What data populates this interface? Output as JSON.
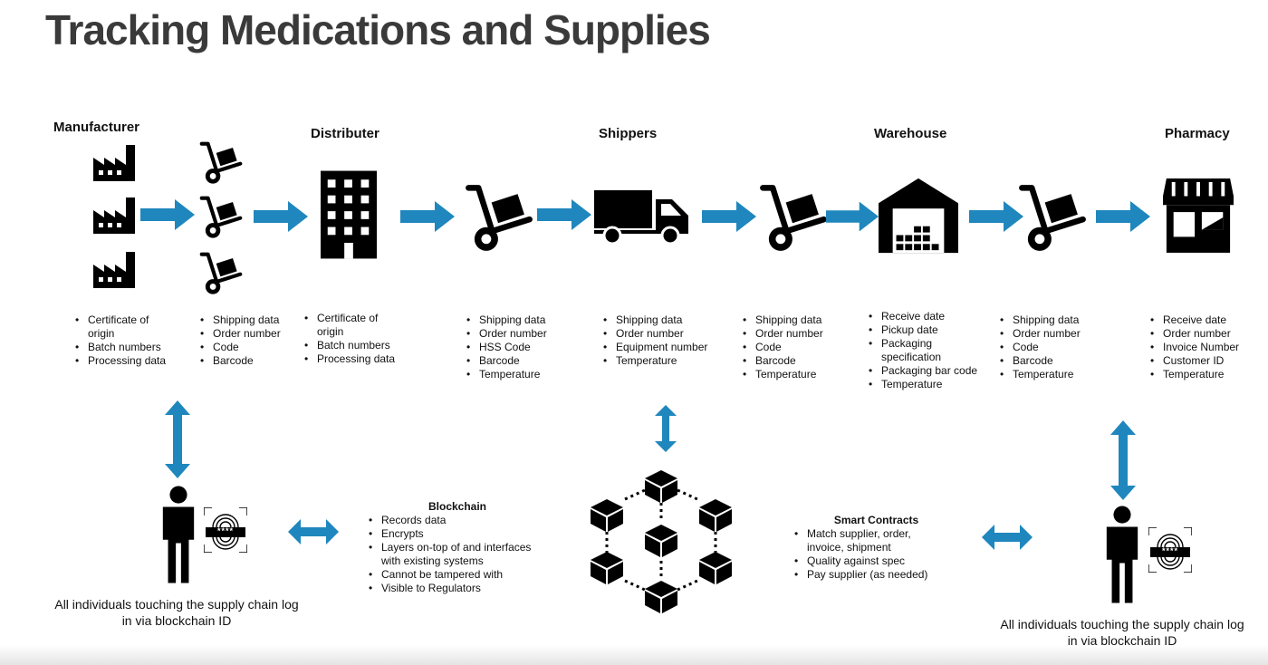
{
  "title": "Tracking Medications and Supplies",
  "stages": [
    {
      "name": "Manufacturer",
      "items": [
        "Certificate of origin",
        "Batch numbers",
        "Processing data"
      ]
    },
    {
      "name": "",
      "items": [
        "Shipping data",
        "Order number",
        "Code",
        "Barcode"
      ]
    },
    {
      "name": "Distributer",
      "items": [
        "Certificate of origin",
        "Batch numbers",
        "Processing data"
      ]
    },
    {
      "name": "",
      "items": [
        "Shipping data",
        "Order number",
        "HSS Code",
        "Barcode",
        "Temperature"
      ]
    },
    {
      "name": "Shippers",
      "items": [
        "Shipping data",
        "Order number",
        "Equipment number",
        "Temperature"
      ]
    },
    {
      "name": "",
      "items": [
        "Shipping data",
        "Order number",
        "Code",
        "Barcode",
        "Temperature"
      ]
    },
    {
      "name": "Warehouse",
      "items": [
        "Receive date",
        "Pickup date",
        "Packaging specification",
        "Packaging bar code",
        "Temperature"
      ]
    },
    {
      "name": "",
      "items": [
        "Shipping data",
        "Order number",
        "Code",
        "Barcode",
        "Temperature"
      ]
    },
    {
      "name": "Pharmacy",
      "items": [
        "Receive date",
        "Order number",
        "Invoice Number",
        "Customer ID",
        "Temperature"
      ]
    }
  ],
  "blockchain": {
    "heading": "Blockchain",
    "items": [
      "Records data",
      "Encrypts",
      "Layers on-top of and interfaces with existing systems",
      "Cannot be tampered with",
      "Visible to Regulators"
    ]
  },
  "smart_contracts": {
    "heading": "Smart Contracts",
    "items": [
      "Match supplier, order, invoice, shipment",
      "Quality against spec",
      "Pay supplier (as needed)"
    ]
  },
  "captions": {
    "left": "All individuals touching the supply chain log in via blockchain ID",
    "right": "All individuals touching the supply chain log in via blockchain ID"
  },
  "id_card_text": "****",
  "colors": {
    "arrow": "#1f87bd",
    "icon": "#000000",
    "title": "#3a3a3a"
  },
  "icons": [
    "factory-icon",
    "hand-truck-icon",
    "office-building-icon",
    "delivery-truck-icon",
    "warehouse-icon",
    "pharmacy-store-icon",
    "person-icon",
    "fingerprint-id-icon",
    "blockchain-network-icon"
  ]
}
